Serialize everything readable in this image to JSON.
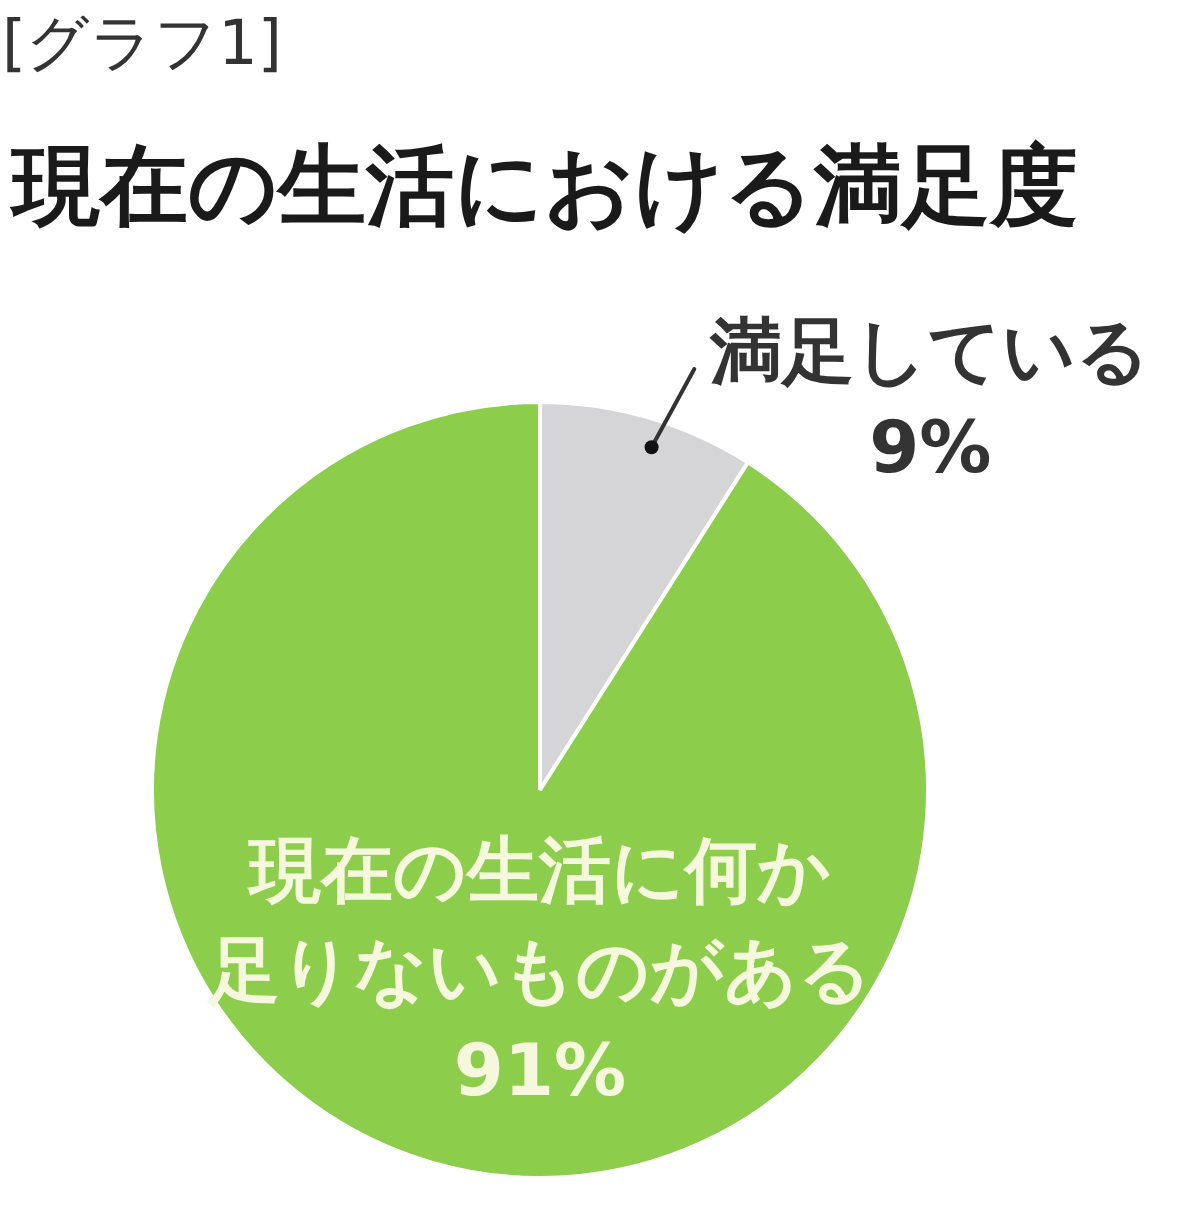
{
  "chart_data": {
    "type": "pie",
    "title": "現在の生活における満足度",
    "annotations": [
      "[グラフ1]"
    ],
    "categories": [
      "満足している",
      "現在の生活に何か足りないものがある"
    ],
    "values": [
      9,
      91
    ],
    "colors": [
      "#d5d5d8",
      "#8ccd4b"
    ],
    "value_labels": [
      "9%",
      "91%"
    ]
  }
}
